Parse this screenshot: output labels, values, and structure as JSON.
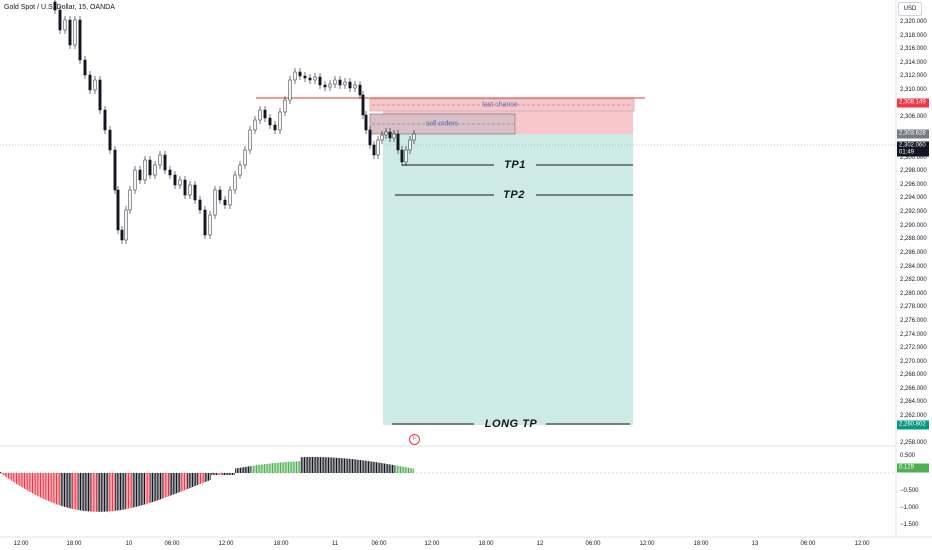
{
  "header": {
    "symbol": "Gold Spot / U.S. Dollar, 15, OANDA",
    "currency": "USD"
  },
  "price_axis": {
    "ticks": [
      "2,320.000",
      "2,318.000",
      "2,316.000",
      "2,314.000",
      "2,312.000",
      "2,310.000",
      "2,306.000",
      "2,300.000",
      "2,298.000",
      "2,296.000",
      "2,294.000",
      "2,292.000",
      "2,290.000",
      "2,288.000",
      "2,286.000",
      "2,284.000",
      "2,282.000",
      "2,280.000",
      "2,278.000",
      "2,276.000",
      "2,274.000",
      "2,272.000",
      "2,270.000",
      "2,268.000",
      "2,266.000",
      "2,264.000",
      "2,262.000",
      "2,258.000"
    ],
    "tags": {
      "stop": {
        "value": "2,308.149",
        "color": "#f23645"
      },
      "entry": {
        "value": "2,303.628",
        "color": "#787b86"
      },
      "current": {
        "value": "2,302.060",
        "countdown": "01:49",
        "color": "#131722"
      },
      "target": {
        "value": "2,260.802",
        "color": "#089981"
      }
    }
  },
  "indicator_axis": {
    "ticks": [
      "0.500",
      "−0.500",
      "−1.000",
      "−1.500"
    ],
    "value_tag": {
      "value": "0.129",
      "color": "#4caf50"
    }
  },
  "time_axis": [
    "12:00",
    "18:00",
    "10",
    "06:00",
    "12:00",
    "18:00",
    "11",
    "06:00",
    "12:00",
    "18:00",
    "12",
    "06:00",
    "12:00",
    "18:00",
    "13",
    "06:00",
    "12:00"
  ],
  "annotations": {
    "zone_last_chance": "last chance",
    "zone_sell_orders": "sell orders",
    "tp1": "TP1",
    "tp2": "TP2",
    "long_tp": "LONG TP",
    "flag": "F"
  },
  "colors": {
    "up": "#131722",
    "down": "#131722",
    "hist_pos": "#4caf50",
    "hist_neg": "#f23645",
    "stop_zone": "#f7c6cb",
    "profit_zone": "#cdebe4",
    "stop_line": "#e53935"
  }
}
